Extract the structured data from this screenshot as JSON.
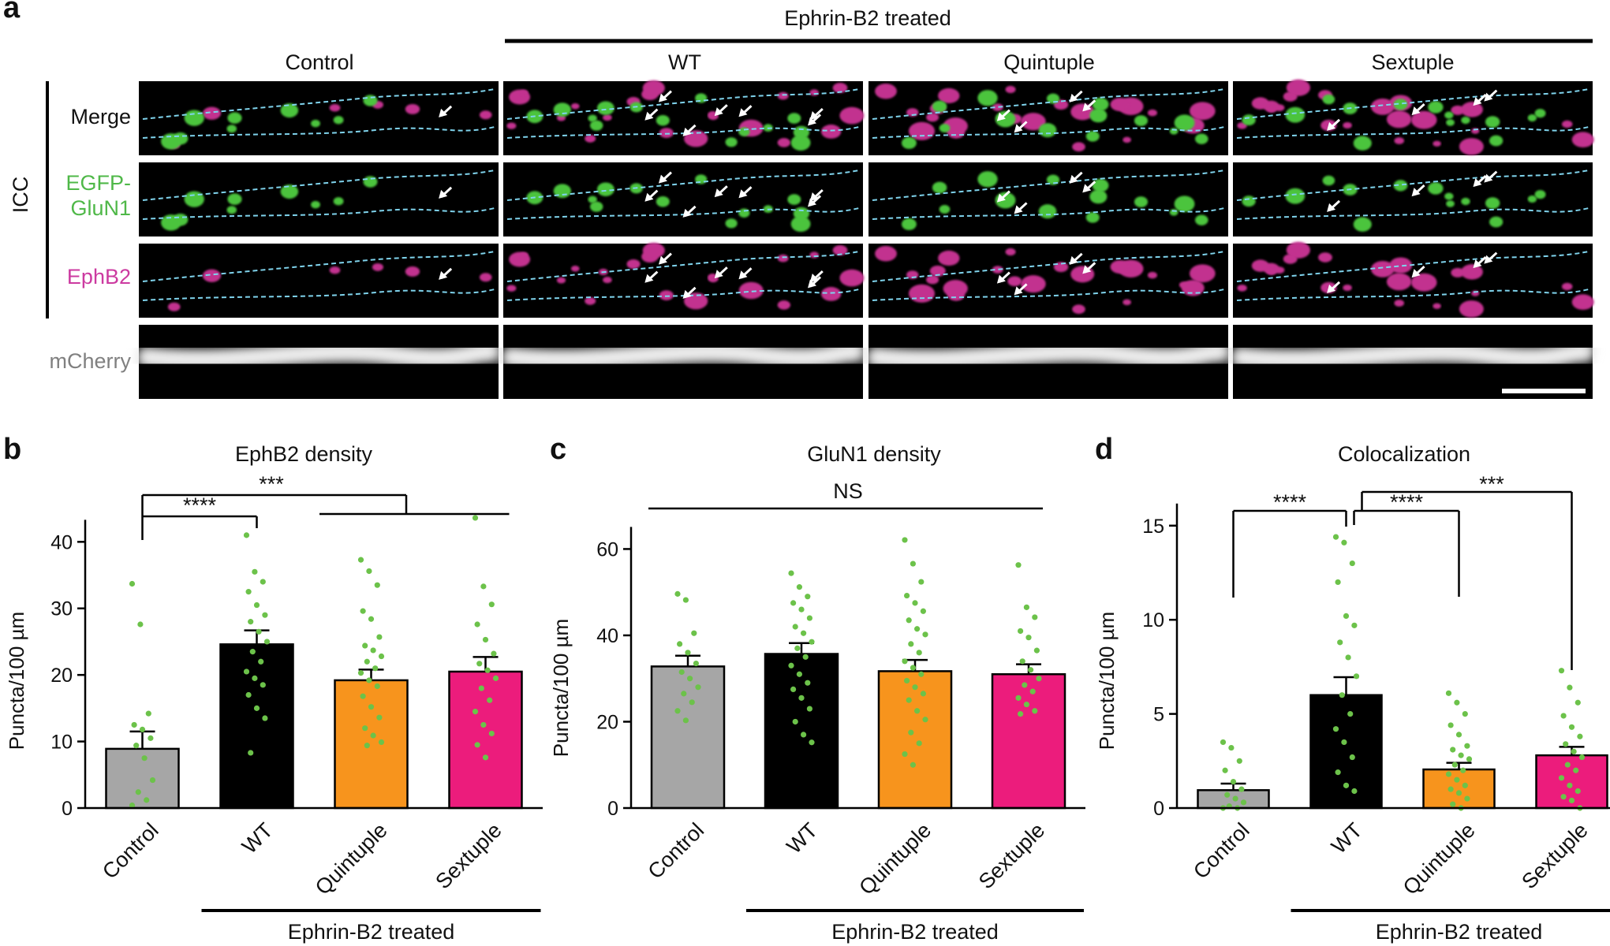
{
  "panels": {
    "a": "a",
    "b": "b",
    "c": "c",
    "d": "d"
  },
  "panel_a": {
    "group_header": "Ephrin-B2 treated",
    "columns": [
      "Control",
      "WT",
      "Quintuple",
      "Sextuple"
    ],
    "row_labels": [
      "Merge",
      "EGFP-",
      "GluN1",
      "EphB2",
      "mCherry"
    ],
    "side_label": "ICC"
  },
  "colors": {
    "control": "#a6a6a6",
    "wt": "#000000",
    "quintuple": "#f7941d",
    "sextuple": "#ec1c7c",
    "dots": "#6cc24a",
    "green_label": "#4fb848",
    "magenta_label": "#cc3aa0",
    "gray_label": "#808080",
    "outline": "#7fd3ec"
  },
  "chart_data": [
    {
      "type": "bar",
      "title": "EphB2 density",
      "ylabel": "Puncta/100 µm",
      "ylim": [
        0,
        43
      ],
      "yticks": [
        0,
        10,
        20,
        30,
        40
      ],
      "categories": [
        "Control",
        "WT",
        "Quintuple",
        "Sextuple"
      ],
      "values": [
        8.9,
        24.6,
        19.2,
        20.5
      ],
      "sem": [
        2.6,
        2.1,
        1.6,
        2.2
      ],
      "points": [
        [
          33.7,
          27.6,
          14.2,
          12.5,
          11.8,
          10.5,
          9.4,
          7.5,
          4.2,
          2.4,
          1.2,
          0.4
        ],
        [
          41.0,
          35.5,
          34.0,
          32.5,
          30.5,
          29.0,
          28.0,
          26.5,
          25.0,
          23.5,
          22.0,
          20.5,
          19.5,
          18.5,
          17.0,
          15.0,
          13.5,
          8.3
        ],
        [
          37.3,
          35.6,
          33.5,
          29.6,
          28.4,
          25.7,
          24.4,
          23.7,
          22.8,
          22.0,
          21.0,
          20.3,
          19.2,
          18.3,
          16.8,
          15.2,
          13.6,
          12.0,
          10.9,
          9.9,
          9.4
        ],
        [
          43.6,
          33.3,
          30.6,
          27.6,
          25.3,
          23.2,
          21.7,
          20.7,
          19.5,
          18.0,
          16.2,
          14.5,
          12.5,
          11.2,
          9.5,
          7.6
        ]
      ],
      "significance": [
        {
          "label": "****"
        },
        {
          "label": "***"
        }
      ],
      "group_label": "Ephrin-B2 treated"
    },
    {
      "type": "bar",
      "title": "GluN1 density",
      "ylabel": "Puncta/100 µm",
      "ylim": [
        0,
        63
      ],
      "yticks": [
        0,
        20,
        40,
        60
      ],
      "categories": [
        "Control",
        "WT",
        "Quintuple",
        "Sextuple"
      ],
      "values": [
        32.8,
        35.7,
        31.7,
        31.0
      ],
      "sem": [
        2.5,
        2.5,
        2.6,
        2.3
      ],
      "points": [
        [
          49.6,
          48.2,
          40.5,
          38.0,
          36.0,
          33.5,
          31.5,
          30.0,
          28.0,
          26.5,
          24.5,
          22.5,
          20.3
        ],
        [
          54.4,
          51.2,
          49.0,
          47.5,
          46.0,
          44.0,
          42.0,
          40.5,
          38.5,
          37.0,
          35.0,
          33.0,
          31.0,
          29.0,
          27.5,
          25.5,
          23.0,
          20.0,
          17.0,
          15.2
        ],
        [
          62.1,
          56.6,
          52.4,
          49.2,
          47.5,
          45.6,
          43.5,
          41.5,
          40.2,
          38.0,
          36.0,
          34.0,
          32.5,
          31.0,
          29.5,
          28.0,
          26.5,
          25.0,
          22.5,
          20.5,
          17.5,
          15.0,
          12.5,
          10.0
        ],
        [
          56.3,
          46.5,
          44.2,
          41.0,
          39.5,
          36.5,
          34.0,
          32.0,
          30.0,
          28.5,
          27.0,
          25.5,
          24.0,
          22.5,
          21.8
        ]
      ],
      "significance": [
        {
          "label": "NS"
        }
      ],
      "group_label": "Ephrin-B2 treated"
    },
    {
      "type": "bar",
      "title": "Colocalization",
      "ylabel": "Puncta/100 µm",
      "ylim": [
        0,
        15.2
      ],
      "yticks": [
        0,
        5,
        10,
        15
      ],
      "categories": [
        "Control",
        "WT",
        "Quintuple",
        "Sextuple"
      ],
      "values": [
        0.95,
        6.0,
        2.05,
        2.8
      ],
      "sem": [
        0.35,
        0.95,
        0.35,
        0.45
      ],
      "points": [
        [
          3.5,
          3.2,
          2.5,
          2.0,
          1.4,
          1.0,
          0.7,
          0.5,
          0.3,
          0.1,
          0.0,
          0.0
        ],
        [
          14.4,
          14.1,
          13.0,
          12.0,
          10.2,
          9.7,
          8.8,
          8.0,
          7.0,
          6.0,
          5.0,
          4.2,
          3.5,
          2.7,
          1.9,
          1.2,
          0.9
        ],
        [
          6.1,
          5.6,
          5.0,
          4.4,
          3.9,
          3.3,
          3.1,
          2.8,
          2.6,
          2.3,
          2.0,
          1.8,
          1.5,
          1.2,
          1.0,
          0.8,
          0.5,
          0.2,
          0.0
        ],
        [
          7.3,
          6.4,
          5.6,
          4.9,
          4.3,
          3.8,
          3.4,
          3.0,
          2.7,
          2.3,
          2.0,
          1.6,
          1.2,
          0.9,
          0.6,
          0.4,
          0.0
        ]
      ],
      "significance": [
        {
          "label": "****"
        },
        {
          "label": "****"
        },
        {
          "label": "***"
        }
      ],
      "group_label": "Ephrin-B2 treated"
    }
  ]
}
